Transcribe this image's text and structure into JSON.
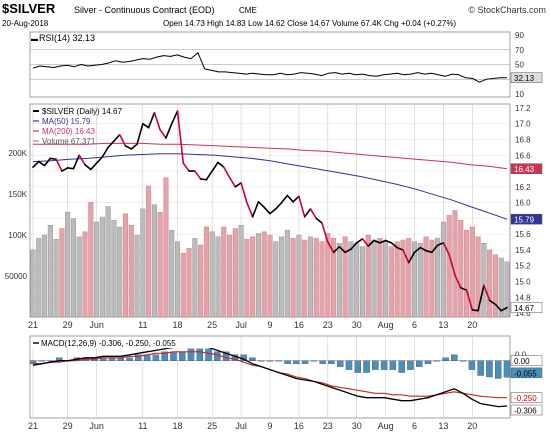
{
  "header": {
    "symbol": "$SILVER",
    "description": "Silver - Continuous Contract (EOD)",
    "exchange": "CME",
    "date": "20-Aug-2018",
    "quote": "Open 14.73  High 14.83  Low 14.62  Close 14.67  Volume 67.4K  Chg +0.04 (+0.27%)",
    "copyright": "© StockCharts.com"
  },
  "colors": {
    "price": "#000000",
    "price_fall": "#cc0033",
    "ma50": "#333399",
    "ma200": "#cc3355",
    "vol_up": "#bbbbbb",
    "vol_down": "#e3a3ad",
    "rsi": "#000000",
    "macd": "#000000",
    "signal": "#cc2222",
    "hist": "#4a8fb8",
    "grid": "#cccccc"
  },
  "chart_data": [
    {
      "type": "line",
      "name": "rsi_panel",
      "legend": "RSI(14) 32.13",
      "y_ticks": [
        "90",
        "70",
        "50",
        "30",
        "10"
      ],
      "ylim": [
        10,
        90
      ],
      "ref_lines": [
        70,
        50,
        30
      ],
      "last_label": "32.13",
      "values": [
        45,
        48,
        47,
        46,
        48,
        49,
        47,
        50,
        48,
        49,
        50,
        52,
        55,
        53,
        54,
        56,
        58,
        57,
        60,
        62,
        61,
        63,
        60,
        58,
        66,
        44,
        42,
        40,
        40,
        39,
        38,
        37,
        38,
        37,
        36,
        36,
        38,
        36,
        37,
        39,
        38,
        37,
        35,
        38,
        39,
        37,
        38,
        36,
        37,
        35,
        34,
        36,
        37,
        38,
        36,
        37,
        39,
        37,
        38,
        36,
        34,
        37,
        36,
        32,
        31,
        26,
        30,
        31,
        32,
        32.13
      ]
    },
    {
      "type": "line",
      "name": "price_panel",
      "legend": [
        "$SILVER (Daily) 14.67",
        "MA(50) 15.79",
        "MA(200) 16.43",
        "Volume 67,371"
      ],
      "y_ticks": [
        "17.2",
        "17.0",
        "16.8",
        "16.6",
        "16.4",
        "16.2",
        "16.0",
        "15.8",
        "15.6",
        "15.4",
        "15.2",
        "15.0",
        "14.8",
        "14.6"
      ],
      "ylim": [
        14.55,
        17.25
      ],
      "x_labels": [
        "21",
        "29",
        "Jun",
        "11",
        "18",
        "25",
        "Jul",
        "9",
        "16",
        "23",
        "30",
        "Aug",
        "6",
        "13",
        "20"
      ],
      "x_label_index": [
        0,
        6,
        11,
        19,
        25,
        31,
        36,
        41,
        46,
        51,
        56,
        61,
        66,
        71,
        76
      ],
      "series": [
        {
          "name": "$SILVER (Daily) 14.67",
          "values": [
            16.45,
            16.52,
            16.47,
            16.56,
            16.55,
            16.4,
            16.44,
            16.43,
            16.6,
            16.48,
            16.42,
            16.5,
            16.58,
            16.7,
            16.78,
            16.86,
            16.72,
            16.68,
            16.74,
            17.0,
            16.95,
            17.14,
            16.92,
            16.82,
            17.0,
            17.16,
            16.5,
            16.4,
            16.4,
            16.3,
            16.29,
            16.4,
            16.51,
            16.45,
            16.32,
            16.2,
            16.25,
            16.0,
            15.82,
            16.01,
            15.94,
            15.86,
            15.92,
            16.0,
            16.09,
            16.01,
            16.08,
            15.82,
            15.92,
            15.8,
            15.74,
            15.5,
            15.37,
            15.44,
            15.37,
            15.41,
            15.49,
            15.54,
            15.45,
            15.52,
            15.49,
            15.52,
            15.49,
            15.43,
            15.4,
            15.24,
            15.37,
            15.43,
            15.39,
            15.37,
            15.46,
            15.49,
            15.34,
            15.08,
            14.92,
            14.89,
            14.64,
            14.63,
            14.95,
            14.76,
            14.71,
            14.63,
            14.67
          ]
        },
        {
          "name": "MA(50) 15.79",
          "values": [
            16.52,
            16.53,
            16.55,
            16.56,
            16.58,
            16.6,
            16.61,
            16.62,
            16.62,
            16.61,
            16.6,
            16.58,
            16.56,
            16.53,
            16.49,
            16.45,
            16.41,
            16.37,
            16.33,
            16.28,
            16.23,
            16.17,
            16.1,
            16.03,
            15.95,
            15.87,
            15.79
          ]
        },
        {
          "name": "MA(200) 16.43",
          "values": [
            16.74,
            16.74,
            16.74,
            16.74,
            16.75,
            16.75,
            16.75,
            16.74,
            16.74,
            16.73,
            16.72,
            16.71,
            16.7,
            16.69,
            16.68,
            16.66,
            16.65,
            16.63,
            16.61,
            16.59,
            16.57,
            16.55,
            16.53,
            16.51,
            16.48,
            16.46,
            16.43
          ]
        }
      ],
      "last_labels": [
        "16.43",
        "15.79",
        "14.67"
      ]
    },
    {
      "type": "bar",
      "name": "volume_overlay",
      "y_ticks": [
        "200K",
        "150K",
        "100K",
        "50000"
      ],
      "ylim": [
        0,
        260000
      ],
      "values": [
        82000,
        96000,
        100000,
        112000,
        95000,
        108000,
        128000,
        120000,
        98000,
        104000,
        140000,
        116000,
        122000,
        135000,
        118000,
        110000,
        126000,
        112000,
        100000,
        132000,
        160000,
        137000,
        128000,
        170000,
        106000,
        92000,
        78000,
        84000,
        96000,
        88000,
        110000,
        104000,
        98000,
        110000,
        100000,
        108000,
        112000,
        95000,
        98000,
        102000,
        104000,
        100000,
        92000,
        98000,
        106000,
        96000,
        100000,
        94000,
        98000,
        96000,
        92000,
        102000,
        96000,
        90000,
        98000,
        92000,
        90000,
        86000,
        100000,
        94000,
        96000,
        92000,
        86000,
        92000,
        94000,
        96000,
        92000,
        90000,
        98000,
        94000,
        96000,
        116000,
        124000,
        130000,
        118000,
        106000,
        110000,
        98000,
        90000,
        82000,
        76000,
        72000,
        67371
      ],
      "down_days": [
        5,
        9,
        10,
        16,
        17,
        20,
        22,
        23,
        26,
        27,
        29,
        30,
        33,
        34,
        35,
        37,
        38,
        40,
        41,
        45,
        47,
        49,
        50,
        51,
        52,
        54,
        58,
        60,
        62,
        63,
        64,
        65,
        68,
        69,
        72,
        73,
        74,
        75,
        76,
        77,
        79,
        80
      ]
    },
    {
      "type": "line",
      "name": "macd_panel",
      "legend": "MACD(12,26,9) -0.306, -0.250, -0.055",
      "y_ticks": [
        "0.0"
      ],
      "ylim": [
        -0.36,
        0.14
      ],
      "x_labels": [
        "21",
        "29",
        "Jun",
        "11",
        "18",
        "25",
        "Jul",
        "9",
        "16",
        "23",
        "30",
        "Aug",
        "6",
        "13",
        "20"
      ],
      "series": [
        {
          "name": "MACD",
          "values": [
            -0.03,
            -0.02,
            -0.01,
            0.0,
            0.0,
            0.01,
            0.02,
            0.02,
            0.03,
            0.03,
            0.03,
            0.04,
            0.05,
            0.06,
            0.07,
            0.08,
            0.09,
            0.09,
            0.1,
            0.1,
            0.09,
            0.07,
            0.05,
            0.03,
            0.01,
            -0.02,
            -0.04,
            -0.06,
            -0.08,
            -0.1,
            -0.12,
            -0.13,
            -0.14,
            -0.16,
            -0.18,
            -0.2,
            -0.22,
            -0.24,
            -0.25,
            -0.25,
            -0.25,
            -0.26,
            -0.27,
            -0.27,
            -0.26,
            -0.25,
            -0.23,
            -0.21,
            -0.19,
            -0.22,
            -0.26,
            -0.29,
            -0.3,
            -0.31,
            -0.306
          ]
        },
        {
          "name": "Signal",
          "values": [
            -0.02,
            -0.02,
            -0.01,
            -0.01,
            0.0,
            0.0,
            0.01,
            0.01,
            0.02,
            0.02,
            0.02,
            0.03,
            0.03,
            0.04,
            0.05,
            0.05,
            0.06,
            0.06,
            0.06,
            0.06,
            0.05,
            0.04,
            0.02,
            0.01,
            -0.01,
            -0.03,
            -0.04,
            -0.06,
            -0.08,
            -0.09,
            -0.11,
            -0.12,
            -0.14,
            -0.15,
            -0.17,
            -0.18,
            -0.19,
            -0.2,
            -0.21,
            -0.22,
            -0.22,
            -0.23,
            -0.23,
            -0.24,
            -0.24,
            -0.24,
            -0.23,
            -0.22,
            -0.21,
            -0.22,
            -0.23,
            -0.24,
            -0.245,
            -0.25,
            -0.25
          ]
        }
      ],
      "last_labels": [
        "0.00",
        "-0.055",
        "-0.250",
        "-0.306"
      ]
    }
  ]
}
